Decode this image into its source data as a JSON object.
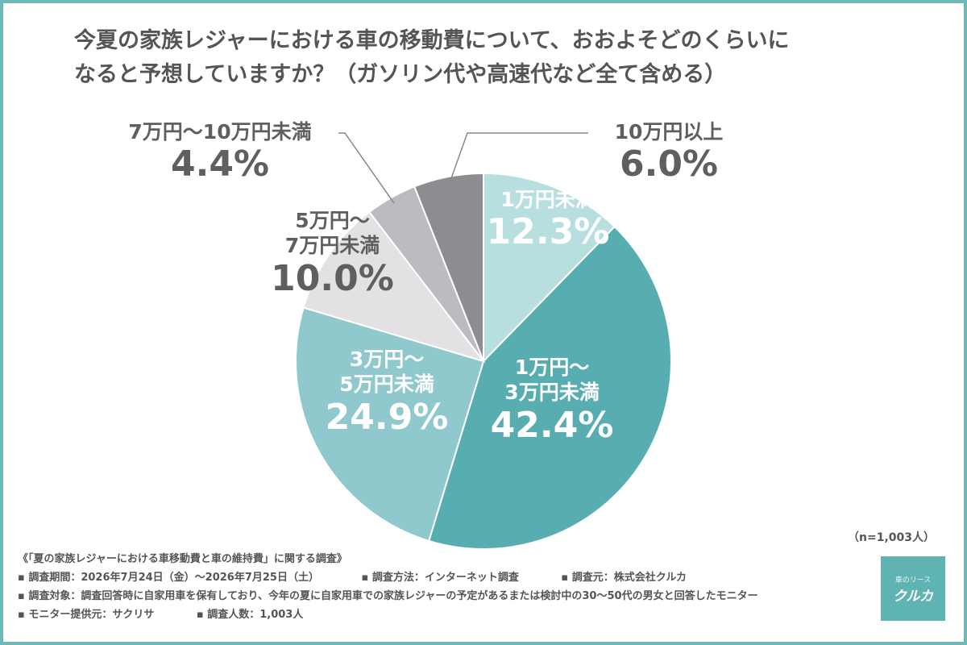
{
  "title_line1": "今夏の家族レジャーにおける車の移動費について、おおよそどのくらいに",
  "title_line2": "なると予想していますか？（ガソリン代や高速代など全て含める）",
  "sample_size": "（n=1,003人）",
  "notes": {
    "header": "《「夏の家族レジャーにおける車移動費と車の維持費」に関する調査》",
    "period": "▪ 調査期間：2026年7月24日（金）〜2026年7月25日（土）",
    "method": "▪ 調査方法：インターネット調査",
    "org": "▪ 調査元：株式会社クルカ",
    "target": "▪ 調査対象：調査回答時に自家用車を保有しており、今年の夏に自家用車での家族レジャーの予定があるまたは検討中の30〜50代の男女と回答したモニター",
    "provider": "▪ モニター提供元：サクリサ",
    "count": "▪ 調査人数：1,003人"
  },
  "logo": {
    "small": "車のリース",
    "big": "クルカ"
  },
  "colors": [
    "#b8dfe0",
    "#58adb1",
    "#8fc9cd",
    "#e4e1e4",
    "#bdbbbf",
    "#8e8c90"
  ],
  "chart_data": {
    "type": "pie",
    "title": "今夏の家族レジャーにおける車の移動費について、おおよそどのくらいになると予想していますか？（ガソリン代や高速代など全て含める）",
    "categories": [
      "1万円未満",
      "1万円〜3万円未満",
      "3万円〜5万円未満",
      "5万円〜7万円未満",
      "7万円〜10万円未満",
      "10万円以上"
    ],
    "values": [
      12.3,
      42.4,
      24.9,
      10.0,
      4.4,
      6.0
    ],
    "labels": [
      {
        "cat": "1万円未満",
        "pct": "12.3%"
      },
      {
        "cat1": "1万円〜",
        "cat2": "3万円未満",
        "pct": "42.4%"
      },
      {
        "cat1": "3万円〜",
        "cat2": "5万円未満",
        "pct": "24.9%"
      },
      {
        "cat1": "5万円〜",
        "cat2": "7万円未満",
        "pct": "10.0%"
      },
      {
        "cat": "7万円〜10万円未満",
        "pct": "4.4%"
      },
      {
        "cat": "10万円以上",
        "pct": "6.0%"
      }
    ],
    "start": "top",
    "direction": "clockwise"
  }
}
